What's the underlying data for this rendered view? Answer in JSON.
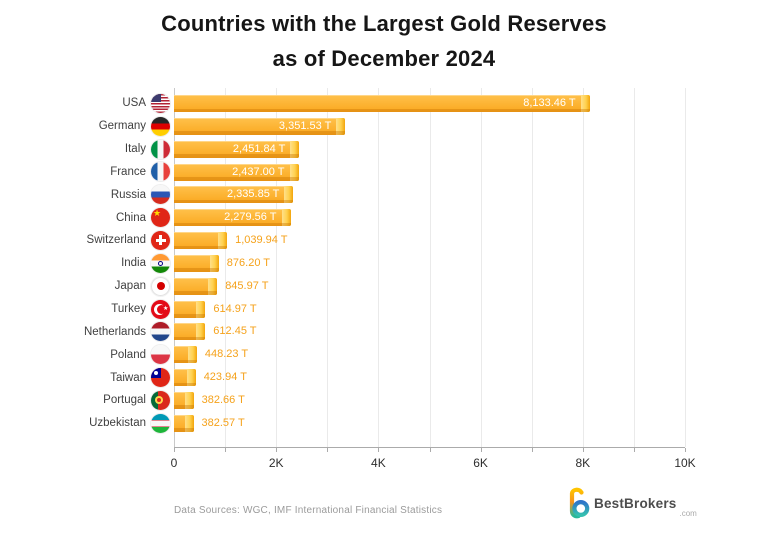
{
  "title": {
    "line1": "Countries with the Largest Gold Reserves",
    "line2": "as of December 2024"
  },
  "chart_data": {
    "type": "bar",
    "orientation": "horizontal",
    "title": "Countries with the Largest Gold Reserves as of December 2024",
    "unit": "tonnes",
    "categories": [
      "USA",
      "Germany",
      "Italy",
      "France",
      "Russia",
      "China",
      "Switzerland",
      "India",
      "Japan",
      "Turkey",
      "Netherlands",
      "Poland",
      "Taiwan",
      "Portugal",
      "Uzbekistan"
    ],
    "values": [
      8133.46,
      3351.53,
      2451.84,
      2437.0,
      2335.85,
      2279.56,
      1039.94,
      876.2,
      845.97,
      614.97,
      612.45,
      448.23,
      423.94,
      382.66,
      382.57
    ],
    "value_labels": [
      "8,133.46 T",
      "3,351.53 T",
      "2,451.84 T",
      "2,437.00 T",
      "2,335.85 T",
      "2,279.56 T",
      "1,039.94 T",
      "876.20 T",
      "845.97 T",
      "614.97 T",
      "612.45 T",
      "448.23 T",
      "423.94 T",
      "382.66 T",
      "382.57 T"
    ],
    "flags": [
      "us",
      "de",
      "it",
      "fr",
      "ru",
      "cn",
      "ch",
      "in",
      "jp",
      "tr",
      "nl",
      "pl",
      "tw",
      "pt",
      "uz"
    ],
    "xlim": [
      0,
      10000
    ],
    "x_tick_labels": [
      "0",
      "2K",
      "4K",
      "6K",
      "8K",
      "10K"
    ],
    "grid_interval": 1000,
    "grid": "vertical",
    "legend": "none"
  },
  "footer": {
    "sources": "Data Sources: WGC, IMF International Financial Statistics",
    "brand": "BestBrokers",
    "brand_suffix": ".com"
  },
  "colors": {
    "bar": "#FAA81F",
    "bar_highlight": "#FFC14B",
    "bar_cap": "#FFD14E",
    "bar_shade": "#E8920B",
    "value_inside": "#FFFFFF",
    "value_outside": "#F5A21B",
    "gridline": "#EAEAEA",
    "axis": "#ABABAB",
    "title_text": "#161616",
    "country_label": "#3F3F3F",
    "source_text": "#9B9B9B"
  }
}
